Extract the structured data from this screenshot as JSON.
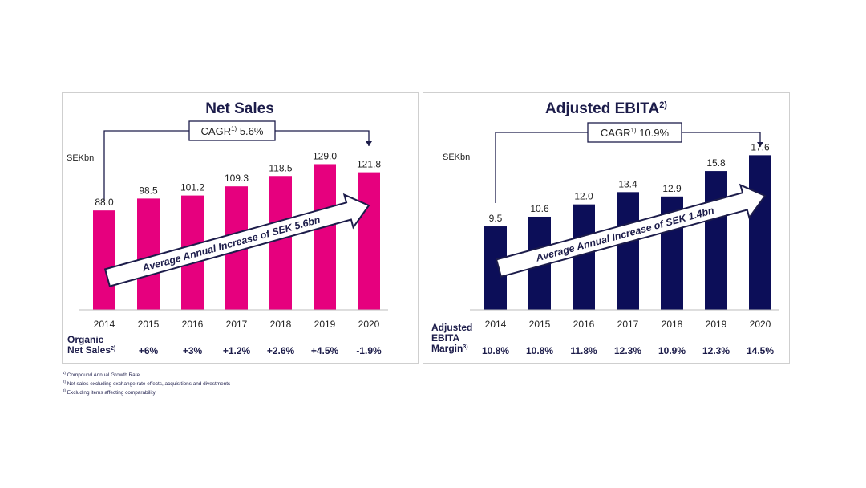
{
  "colors": {
    "sales_bar": "#e6007e",
    "ebita_bar": "#0c0e58",
    "navy": "#1c1c4a",
    "text": "#1f1f1f"
  },
  "chart_data": [
    {
      "type": "bar",
      "title": "Net Sales",
      "unit_label": "SEKbn",
      "cagr_label": "CAGR",
      "cagr_note": "1)",
      "cagr_value": "5.6%",
      "arrow_text": "Average Annual Increase of SEK 5.6bn",
      "categories": [
        "2014",
        "2015",
        "2016",
        "2017",
        "2018",
        "2019",
        "2020"
      ],
      "values": [
        88.0,
        98.5,
        101.2,
        109.3,
        118.5,
        129.0,
        121.8
      ],
      "value_labels": [
        "88.0",
        "98.5",
        "101.2",
        "109.3",
        "118.5",
        "129.0",
        "121.8"
      ],
      "ylim": [
        0,
        140
      ],
      "row_label_lines": [
        "Organic",
        "Net Sales"
      ],
      "row_label_note": "2)",
      "row_values": [
        "+6%",
        "+3%",
        "+1.2%",
        "+2.6%",
        "+4.5%",
        "-1.9%"
      ]
    },
    {
      "type": "bar",
      "title": "Adjusted EBITA",
      "title_note": "2)",
      "unit_label": "SEKbn",
      "cagr_label": "CAGR",
      "cagr_note": "1)",
      "cagr_value": "10.9%",
      "arrow_text": "Average Annual Increase of SEK 1.4bn",
      "categories": [
        "2014",
        "2015",
        "2016",
        "2017",
        "2018",
        "2019",
        "2020"
      ],
      "values": [
        9.5,
        10.6,
        12.0,
        13.4,
        12.9,
        15.8,
        17.6
      ],
      "value_labels": [
        "9.5",
        "10.6",
        "12.0",
        "13.4",
        "12.9",
        "15.8",
        "17.6"
      ],
      "ylim": [
        0,
        18
      ],
      "row_label_lines": [
        "Adjusted",
        "EBITA",
        "Margin"
      ],
      "row_label_note": "3)",
      "row_values": [
        "10.8%",
        "10.8%",
        "11.8%",
        "12.3%",
        "10.9%",
        "12.3%",
        "14.5%"
      ]
    }
  ],
  "footnotes": [
    {
      "num": "1)",
      "text": "Compound Annual Growth Rate"
    },
    {
      "num": "2)",
      "text": "Net sales excluding exchange rate effects, acquisitions and divestments"
    },
    {
      "num": "3)",
      "text": "Excluding items affecting comparability"
    }
  ]
}
